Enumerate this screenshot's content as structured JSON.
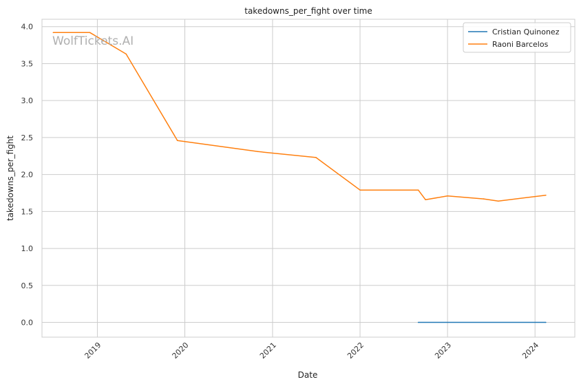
{
  "chart_data": {
    "type": "line",
    "title": "takedowns_per_fight over time",
    "xlabel": "Date",
    "ylabel": "takedowns_per_fight",
    "watermark": "WolfTickets.AI",
    "x_axis_type": "date",
    "xlim": [
      "2018-05-15",
      "2024-06-15"
    ],
    "ylim": [
      -0.2,
      4.1
    ],
    "x_ticks": [
      {
        "date": "2019-01-01",
        "label": "2019"
      },
      {
        "date": "2020-01-01",
        "label": "2020"
      },
      {
        "date": "2021-01-01",
        "label": "2021"
      },
      {
        "date": "2022-01-01",
        "label": "2022"
      },
      {
        "date": "2023-01-01",
        "label": "2023"
      },
      {
        "date": "2024-01-01",
        "label": "2024"
      }
    ],
    "y_ticks": [
      {
        "value": 0.0,
        "label": "0.0"
      },
      {
        "value": 0.5,
        "label": "0.5"
      },
      {
        "value": 1.0,
        "label": "1.0"
      },
      {
        "value": 1.5,
        "label": "1.5"
      },
      {
        "value": 2.0,
        "label": "2.0"
      },
      {
        "value": 2.5,
        "label": "2.5"
      },
      {
        "value": 3.0,
        "label": "3.0"
      },
      {
        "value": 3.5,
        "label": "3.5"
      },
      {
        "value": 4.0,
        "label": "4.0"
      }
    ],
    "grid": true,
    "legend_position": "top-right",
    "series": [
      {
        "name": "Cristian Quinonez",
        "color": "#1f77b4",
        "points": [
          {
            "x": "2022-09-01",
            "y": 0.0
          },
          {
            "x": "2024-02-15",
            "y": 0.0
          }
        ]
      },
      {
        "name": "Raoni Barcelos",
        "color": "#ff7f0e",
        "points": [
          {
            "x": "2018-07-01",
            "y": 3.92
          },
          {
            "x": "2018-12-01",
            "y": 3.92
          },
          {
            "x": "2019-05-01",
            "y": 3.63
          },
          {
            "x": "2019-12-01",
            "y": 2.46
          },
          {
            "x": "2020-11-01",
            "y": 2.31
          },
          {
            "x": "2021-07-01",
            "y": 2.23
          },
          {
            "x": "2022-01-01",
            "y": 1.79
          },
          {
            "x": "2022-09-01",
            "y": 1.79
          },
          {
            "x": "2022-10-01",
            "y": 1.66
          },
          {
            "x": "2023-01-01",
            "y": 1.71
          },
          {
            "x": "2023-06-01",
            "y": 1.67
          },
          {
            "x": "2023-08-01",
            "y": 1.64
          },
          {
            "x": "2024-02-15",
            "y": 1.72
          }
        ]
      }
    ]
  }
}
